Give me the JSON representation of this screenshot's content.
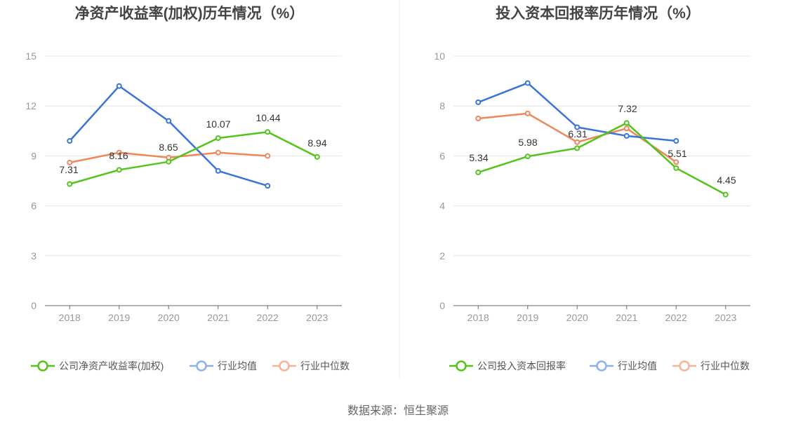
{
  "source": "数据来源：恒生聚源",
  "colors": {
    "company": "#52c41a",
    "industry_avg": "#3b73db",
    "industry_median": "#f0875a",
    "legend_avg": "#8fb0f0",
    "legend_median": "#f7b39a",
    "grid": "#e6e6e6",
    "axis": "#666666"
  },
  "chart_data": [
    {
      "type": "line",
      "title": "净资产收益率(加权)历年情况（%）",
      "x": [
        "2018",
        "2019",
        "2020",
        "2021",
        "2022",
        "2023"
      ],
      "ylim": [
        0,
        15
      ],
      "yticks": [
        0,
        3,
        6,
        9,
        12,
        15
      ],
      "grid": true,
      "legend_position": "bottom",
      "series": [
        {
          "key": "company",
          "name": "公司净资产收益率(加权)",
          "values": [
            7.31,
            8.16,
            8.65,
            10.07,
            10.44,
            8.94
          ],
          "labels": [
            "7.31",
            "8.16",
            "8.65",
            "10.07",
            "10.44",
            "8.94"
          ]
        },
        {
          "key": "industry_avg",
          "name": "行业均值",
          "values": [
            9.9,
            13.2,
            11.1,
            8.1,
            7.2,
            null
          ]
        },
        {
          "key": "industry_median",
          "name": "行业中位数",
          "values": [
            8.6,
            9.2,
            8.9,
            9.2,
            9.0,
            null
          ]
        }
      ]
    },
    {
      "type": "line",
      "title": "投入资本回报率历年情况（%）",
      "x": [
        "2018",
        "2019",
        "2020",
        "2021",
        "2022",
        "2023"
      ],
      "ylim": [
        0,
        10
      ],
      "yticks": [
        0,
        2,
        4,
        6,
        8,
        10
      ],
      "grid": true,
      "legend_position": "bottom",
      "series": [
        {
          "key": "company",
          "name": "公司投入资本回报率",
          "values": [
            5.34,
            5.98,
            6.31,
            7.32,
            5.51,
            4.45
          ],
          "labels": [
            "5.34",
            "5.98",
            "6.31",
            "7.32",
            "5.51",
            "4.45"
          ]
        },
        {
          "key": "industry_avg",
          "name": "行业均值",
          "values": [
            8.15,
            8.92,
            7.15,
            6.8,
            6.6,
            null
          ]
        },
        {
          "key": "industry_median",
          "name": "行业中位数",
          "values": [
            7.5,
            7.7,
            6.55,
            7.1,
            5.75,
            null
          ]
        }
      ]
    }
  ]
}
